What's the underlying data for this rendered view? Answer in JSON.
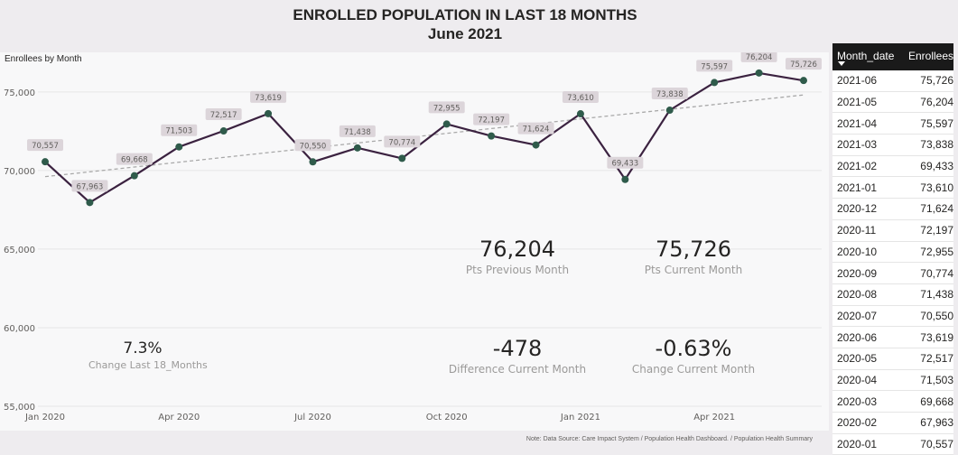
{
  "title": {
    "line1": "ENROLLED POPULATION IN LAST 18 MONTHS",
    "line2": "June 2021"
  },
  "chart_data": {
    "type": "line",
    "title": "Enrollees by Month",
    "xlabel": "",
    "ylabel": "",
    "x": [
      "2020-01",
      "2020-02",
      "2020-03",
      "2020-04",
      "2020-05",
      "2020-06",
      "2020-07",
      "2020-08",
      "2020-09",
      "2020-10",
      "2020-11",
      "2020-12",
      "2021-01",
      "2021-02",
      "2021-03",
      "2021-04",
      "2021-05",
      "2021-06"
    ],
    "values": [
      70557,
      67963,
      69668,
      71503,
      72517,
      73619,
      70550,
      71438,
      70774,
      72955,
      72197,
      71624,
      73610,
      69433,
      73838,
      75597,
      76204,
      75726
    ],
    "labels": [
      "70,557",
      "67,963",
      "69,668",
      "71,503",
      "72,517",
      "73,619",
      "70,550",
      "71,438",
      "70,774",
      "72,955",
      "72,197",
      "71,624",
      "73,610",
      "69,433",
      "73,838",
      "75,597",
      "76,204",
      "75,726"
    ],
    "ylim": [
      55000,
      77000
    ],
    "yticks": [
      55000,
      60000,
      65000,
      70000,
      75000
    ],
    "ytick_labels": [
      "55,000",
      "60,000",
      "65,000",
      "70,000",
      "75,000"
    ],
    "xtick_index": [
      0,
      3,
      6,
      9,
      12,
      15
    ],
    "xtick_labels": [
      "Jan 2020",
      "Apr 2020",
      "Jul 2020",
      "Oct 2020",
      "Jan 2021",
      "Apr 2021"
    ],
    "trendline": true,
    "grid": true,
    "line_color": "#3b2240",
    "marker_color": "#2f5b4b",
    "trend_color": "#a8a8a8",
    "label_bg": "#dcd5da"
  },
  "kpis": {
    "change_18": {
      "value": "7.3%",
      "label": "Change Last 18_Months"
    },
    "prev_month": {
      "value": "76,204",
      "label": "Pts Previous Month"
    },
    "curr_month": {
      "value": "75,726",
      "label": "Pts Current Month"
    },
    "diff_month": {
      "value": "-478",
      "label": "Difference Current Month"
    },
    "change_month": {
      "value": "-0.63%",
      "label": "Change Current Month"
    }
  },
  "table": {
    "headers": [
      "Month_date",
      "Enrollees"
    ],
    "rows": [
      [
        "2021-06",
        "75,726"
      ],
      [
        "2021-05",
        "76,204"
      ],
      [
        "2021-04",
        "75,597"
      ],
      [
        "2021-03",
        "73,838"
      ],
      [
        "2021-02",
        "69,433"
      ],
      [
        "2021-01",
        "73,610"
      ],
      [
        "2020-12",
        "71,624"
      ],
      [
        "2020-11",
        "72,197"
      ],
      [
        "2020-10",
        "72,955"
      ],
      [
        "2020-09",
        "70,774"
      ],
      [
        "2020-08",
        "71,438"
      ],
      [
        "2020-07",
        "70,550"
      ],
      [
        "2020-06",
        "73,619"
      ],
      [
        "2020-05",
        "72,517"
      ],
      [
        "2020-04",
        "71,503"
      ],
      [
        "2020-03",
        "69,668"
      ],
      [
        "2020-02",
        "67,963"
      ],
      [
        "2020-01",
        "70,557"
      ]
    ]
  },
  "note": "Note: Data Source: Care Impact System / Population Health Dashboard. / Population Health Summary"
}
